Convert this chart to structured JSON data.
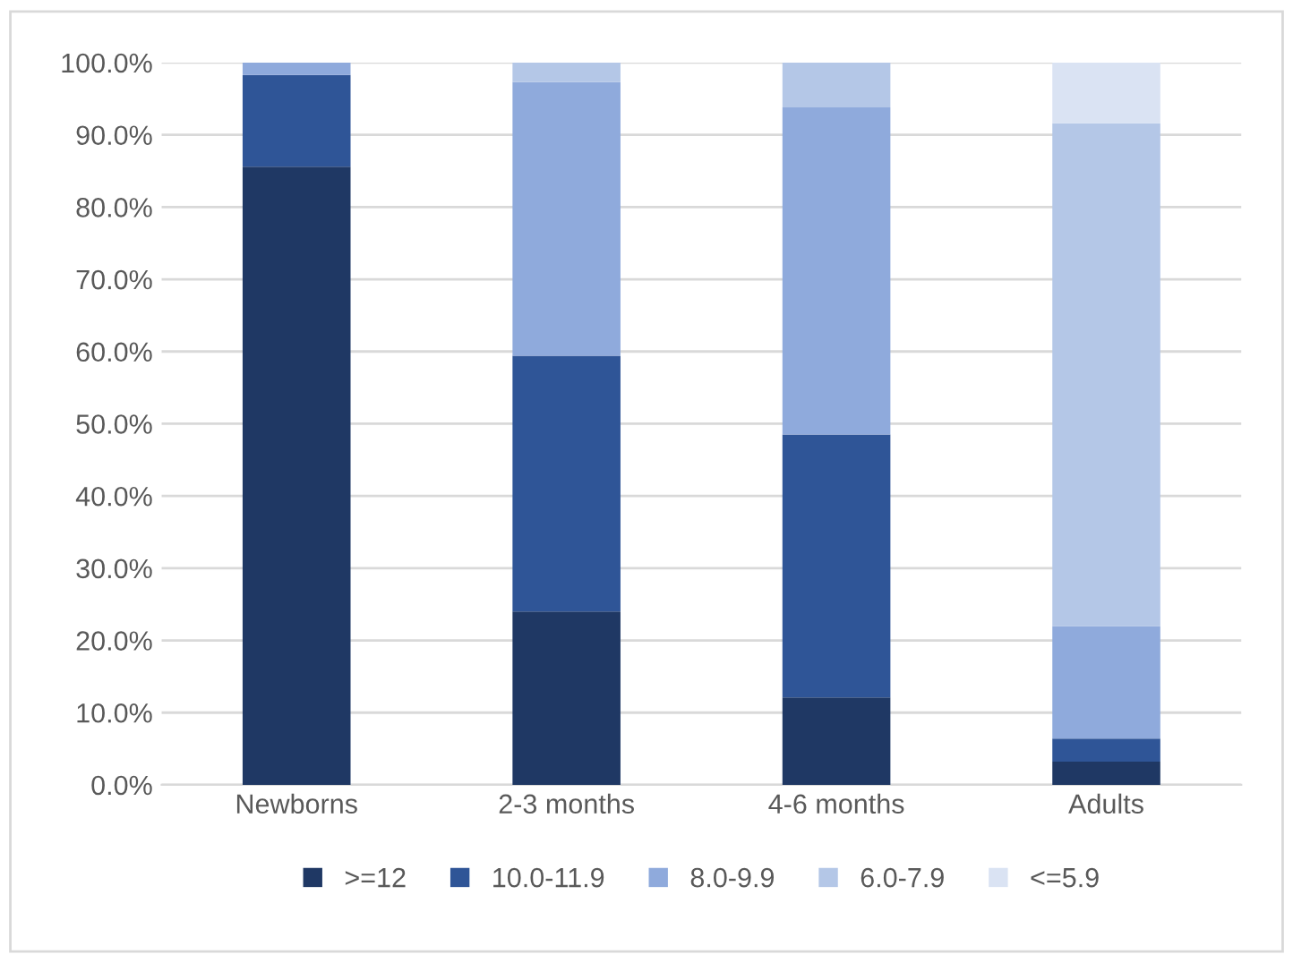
{
  "chart_data": {
    "type": "bar",
    "stacked": true,
    "categories": [
      "Newborns",
      "2-3 months",
      "4-6 months",
      "Adults"
    ],
    "series": [
      {
        "name": ">=12",
        "color": "#1f3864",
        "values": [
          85.6,
          24.0,
          12.1,
          3.2
        ]
      },
      {
        "name": "10.0-11.9",
        "color": "#2f5597",
        "values": [
          12.7,
          35.4,
          36.4,
          3.2
        ]
      },
      {
        "name": "8.0-9.9",
        "color": "#8faadc",
        "values": [
          1.7,
          37.9,
          45.3,
          15.6
        ]
      },
      {
        "name": "6.0-7.9",
        "color": "#b4c7e7",
        "values": [
          0,
          2.7,
          6.2,
          69.6
        ]
      },
      {
        "name": "<=5.9",
        "color": "#dae3f3",
        "values": [
          0,
          0,
          null,
          8.4
        ]
      }
    ],
    "ylim": [
      0,
      100
    ],
    "yticks": [
      {
        "value": 0,
        "label": "0.0%"
      },
      {
        "value": 10,
        "label": "10.0%"
      },
      {
        "value": 20,
        "label": "20.0%"
      },
      {
        "value": 30,
        "label": "30.0%"
      },
      {
        "value": 40,
        "label": "40.0%"
      },
      {
        "value": 50,
        "label": "50.0%"
      },
      {
        "value": 60,
        "label": "60.0%"
      },
      {
        "value": 70,
        "label": "70.0%"
      },
      {
        "value": 80,
        "label": "80.0%"
      },
      {
        "value": 90,
        "label": "90.0%"
      },
      {
        "value": 100,
        "label": "100.0%"
      }
    ],
    "grid": "y",
    "legend": "bottom"
  }
}
